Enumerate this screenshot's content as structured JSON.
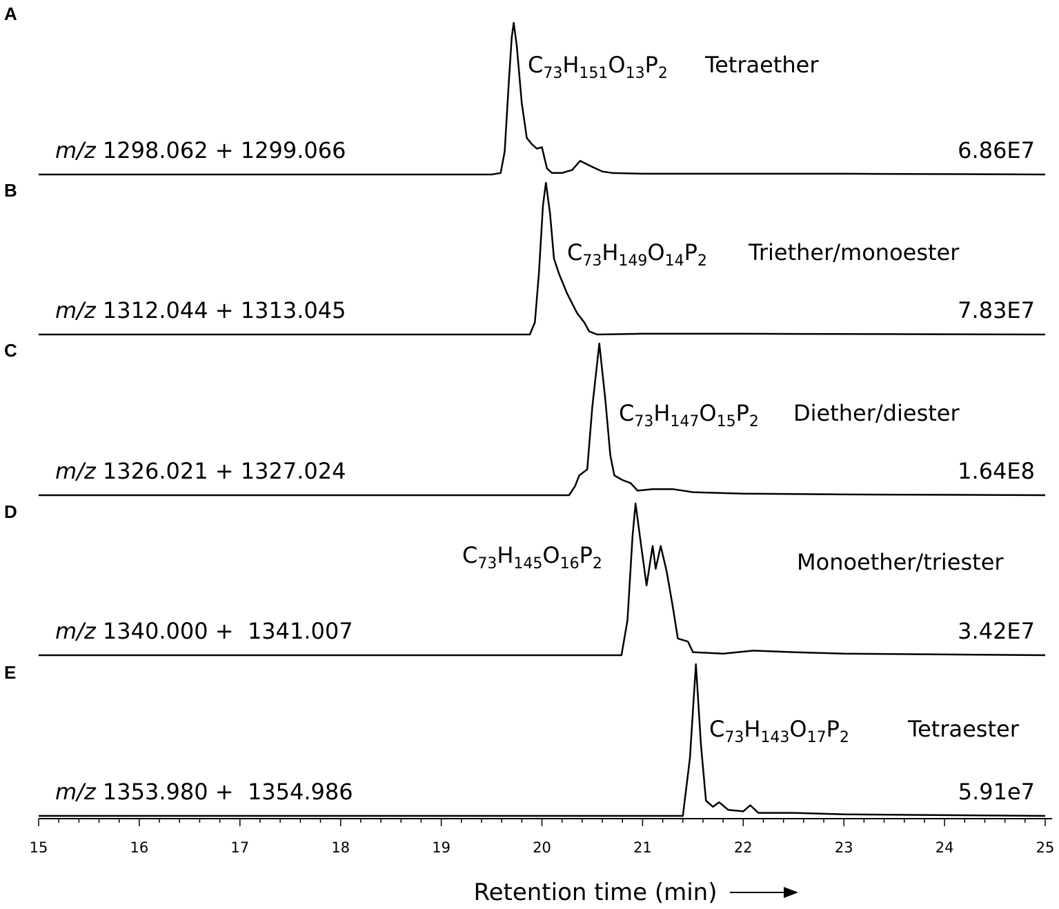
{
  "chart_data": [
    {
      "type": "line",
      "panel": "A",
      "label_prefix": "m/z",
      "label": "1298.062 + 1299.066",
      "formula": [
        "C",
        "73",
        "H",
        "151",
        "O",
        "13",
        "P",
        "2"
      ],
      "compound_class": "Tetraether",
      "max_intensity": "6.86E7",
      "color": "#000000",
      "xlim": [
        15,
        25
      ],
      "ylim": [
        0,
        100
      ],
      "x": [
        15,
        19.5,
        19.59,
        19.63,
        19.67,
        19.7,
        19.72,
        19.75,
        19.8,
        19.85,
        19.9,
        19.95,
        20.0,
        20.05,
        20.1,
        20.2,
        20.3,
        20.38,
        20.5,
        20.6,
        20.7,
        21,
        22,
        23,
        25
      ],
      "values": [
        0,
        0,
        1,
        15,
        60,
        90,
        100,
        85,
        47,
        24,
        20,
        17,
        18,
        4,
        1,
        1,
        3,
        9,
        5,
        2,
        1,
        0.5,
        0.5,
        0.5,
        0
      ]
    },
    {
      "type": "line",
      "panel": "B",
      "label_prefix": "m/z",
      "label": "1312.044 + 1313.045",
      "formula": [
        "C",
        "73",
        "H",
        "149",
        "O",
        "14",
        "P",
        "2"
      ],
      "compound_class": "Triether/monoester",
      "max_intensity": "7.83E7",
      "color": "#000000",
      "xlim": [
        15,
        25
      ],
      "ylim": [
        0,
        100
      ],
      "x": [
        15,
        19.88,
        19.93,
        19.97,
        20.01,
        20.04,
        20.08,
        20.12,
        20.17,
        20.25,
        20.35,
        20.42,
        20.47,
        20.55,
        21,
        22,
        25
      ],
      "values": [
        0,
        0,
        8,
        40,
        85,
        100,
        80,
        50,
        40,
        27,
        14,
        8,
        2,
        0,
        0.5,
        0.5,
        0
      ]
    },
    {
      "type": "line",
      "panel": "C",
      "label_prefix": "m/z",
      "label": "1326.021 + 1327.024",
      "formula": [
        "C",
        "73",
        "H",
        "147",
        "O",
        "15",
        "P",
        "2"
      ],
      "compound_class": "Diether/diester",
      "max_intensity": "1.64E8",
      "color": "#000000",
      "xlim": [
        15,
        25
      ],
      "ylim": [
        0,
        100
      ],
      "x": [
        15,
        20.27,
        20.33,
        20.37,
        20.45,
        20.5,
        20.57,
        20.63,
        20.68,
        20.72,
        20.8,
        20.88,
        20.95,
        21.1,
        21.3,
        21.5,
        22,
        23,
        25
      ],
      "values": [
        0,
        0,
        6,
        13,
        17,
        58,
        100,
        63,
        26,
        13,
        10,
        8,
        3,
        4,
        4,
        2,
        1,
        0.5,
        0
      ]
    },
    {
      "type": "line",
      "panel": "D",
      "label_prefix": "m/z",
      "label": "1340.000 +  1341.007",
      "formula": [
        "C",
        "73",
        "H",
        "145",
        "O",
        "16",
        "P",
        "2"
      ],
      "compound_class": "Monoether/triester",
      "max_intensity": "3.42E7",
      "color": "#000000",
      "xlim": [
        15,
        25
      ],
      "ylim": [
        0,
        100
      ],
      "x": [
        15,
        20.79,
        20.85,
        20.9,
        20.93,
        20.98,
        21.04,
        21.1,
        21.13,
        21.18,
        21.24,
        21.3,
        21.35,
        21.45,
        21.5,
        21.8,
        22.1,
        22.5,
        23,
        25
      ],
      "values": [
        0,
        0,
        23,
        78,
        100,
        75,
        46,
        72,
        57,
        72,
        55,
        32,
        11,
        9,
        2,
        1,
        3,
        2,
        1,
        0
      ]
    },
    {
      "type": "line",
      "panel": "E",
      "label_prefix": "m/z",
      "label": "1353.980 +  1354.986",
      "formula": [
        "C",
        "73",
        "H",
        "143",
        "O",
        "17",
        "P",
        "2"
      ],
      "compound_class": "Tetraester",
      "max_intensity": "5.91e7",
      "color": "#000000",
      "xlim": [
        15,
        25
      ],
      "ylim": [
        0,
        100
      ],
      "x": [
        15,
        21.4,
        21.47,
        21.53,
        21.58,
        21.63,
        21.7,
        21.76,
        21.85,
        22.0,
        22.07,
        22.15,
        22.5,
        23,
        25
      ],
      "values": [
        0,
        0,
        38,
        100,
        47,
        10,
        6,
        9,
        4,
        3,
        7,
        2,
        2,
        1,
        0
      ],
      "xlabel": "Retention time (min)",
      "xticks": [
        15,
        16,
        17,
        18,
        19,
        20,
        21,
        22,
        23,
        24,
        25
      ],
      "xticks_minor": [
        15.2,
        15.4,
        15.6,
        15.8,
        16.2,
        16.4,
        16.6,
        16.8,
        17.2,
        17.4,
        17.6,
        17.8,
        18.2,
        18.4,
        18.6,
        18.8,
        19.2,
        19.4,
        19.6,
        19.8,
        20.2,
        20.4,
        20.6,
        20.8,
        21.2,
        21.4,
        21.6,
        21.8,
        22.2,
        22.4,
        22.6,
        22.8,
        23.2,
        23.4,
        23.6,
        23.8,
        24.2,
        24.4,
        24.6,
        24.8
      ]
    }
  ]
}
